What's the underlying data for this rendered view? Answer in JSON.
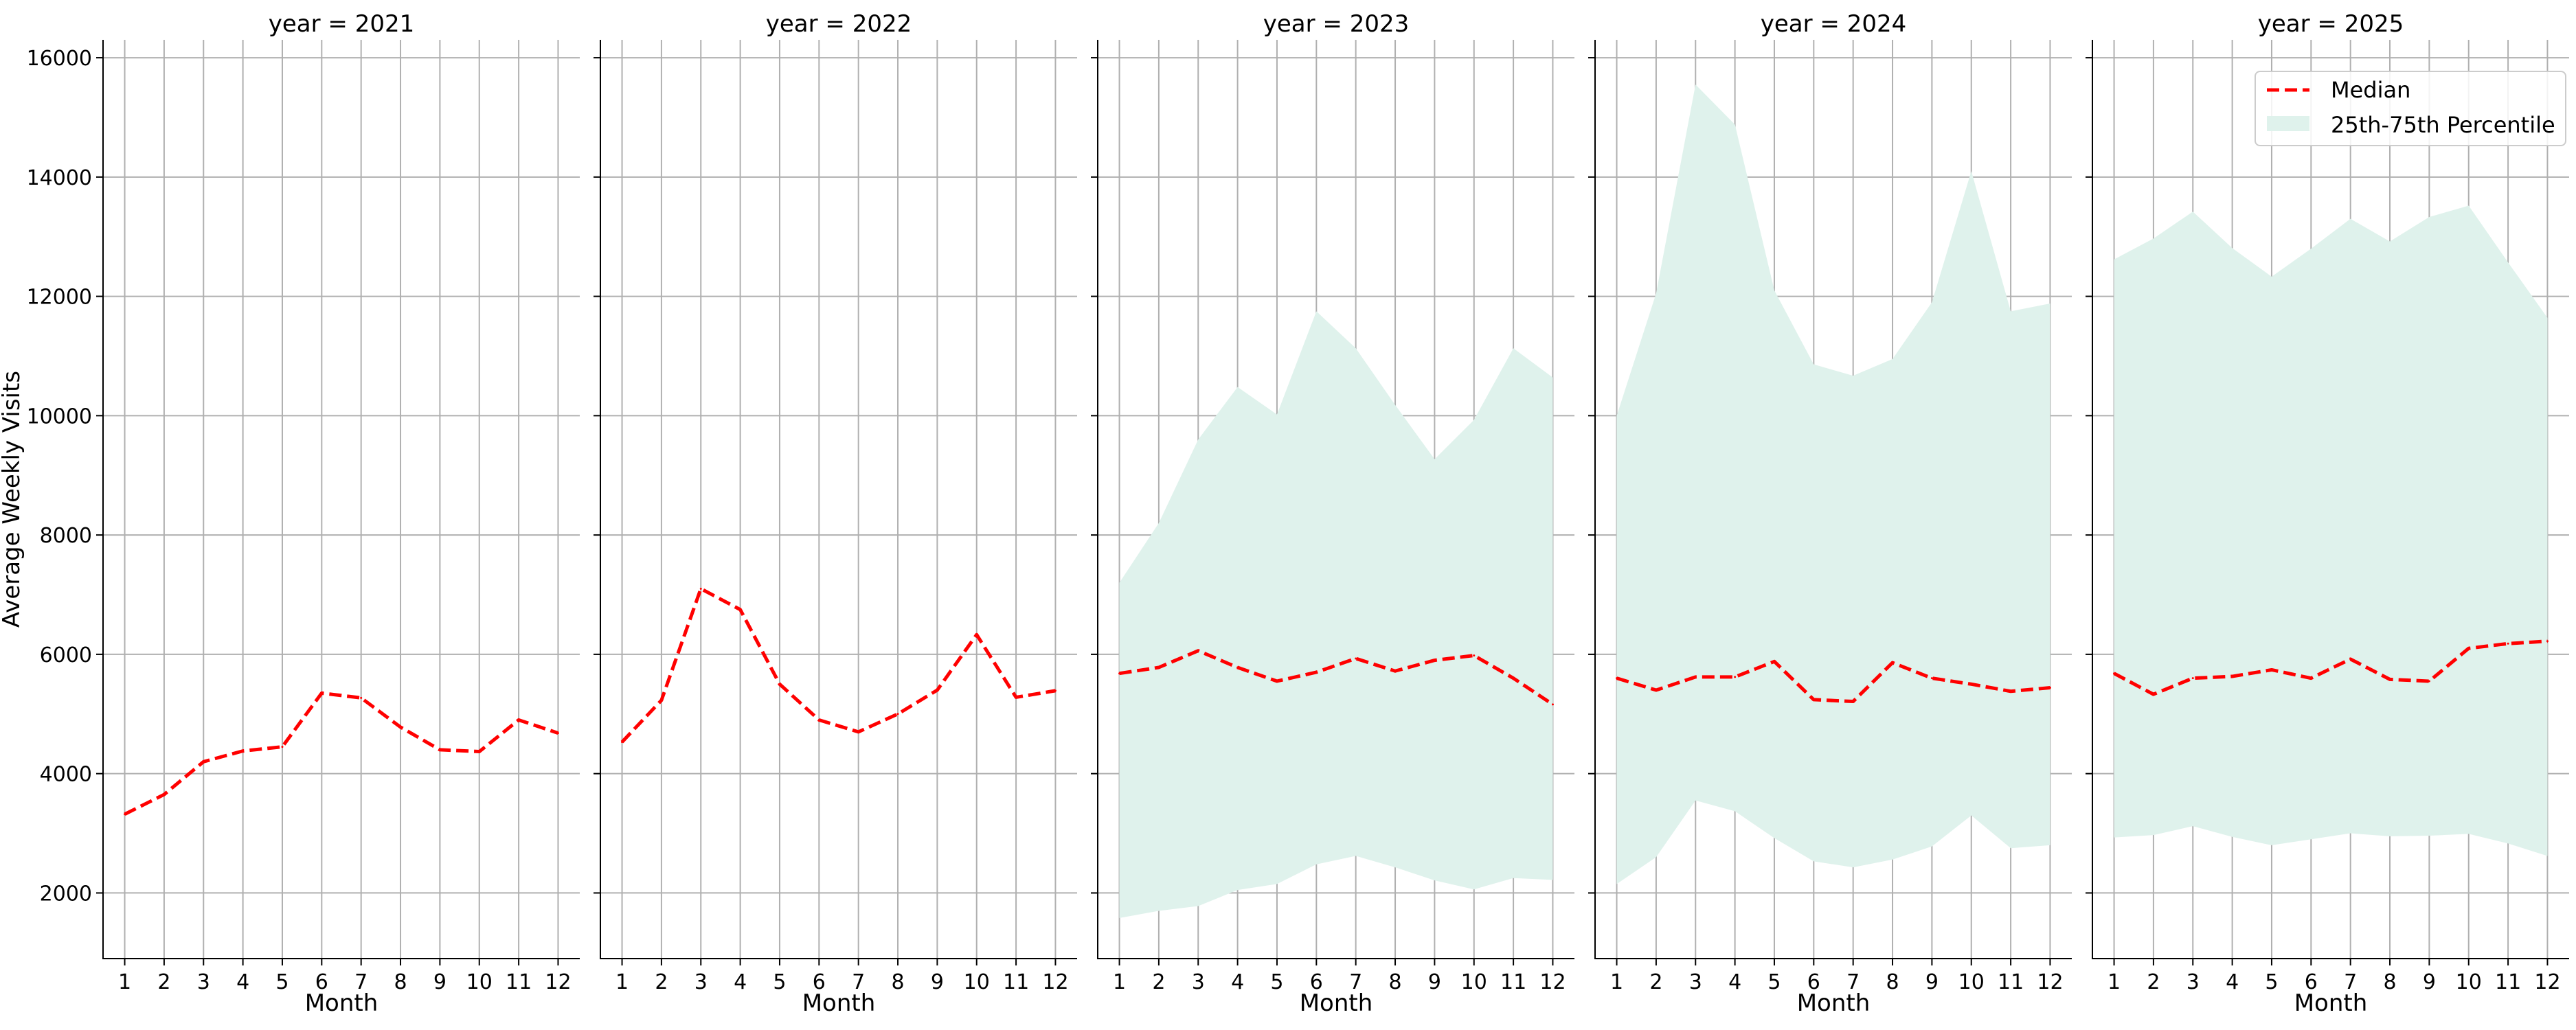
{
  "chart_data": {
    "type": "line",
    "layout": "small-multiples",
    "ylabel": "Average Weekly Visits",
    "xlabel": "Month",
    "ylim": [
      900,
      16300
    ],
    "xlim": [
      0.45,
      12.55
    ],
    "x_ticks": [
      1,
      2,
      3,
      4,
      5,
      6,
      7,
      8,
      9,
      10,
      11,
      12
    ],
    "y_ticks": [
      2000,
      4000,
      6000,
      8000,
      10000,
      12000,
      14000,
      16000
    ],
    "grid": true,
    "legend": {
      "placement": "top-right",
      "panel_index": 4,
      "entries": [
        "Median",
        "25th-75th Percentile"
      ]
    },
    "colors": {
      "median": "#ff0000",
      "band": "#dff2ec",
      "grid": "#b0b0b0",
      "axis": "#000000"
    },
    "panels": [
      {
        "title": "year = 2021",
        "median": [
          3320,
          3650,
          4200,
          4380,
          4450,
          5350,
          5270,
          4780,
          4400,
          4370,
          4900,
          4680
        ],
        "q25": null,
        "q75": null
      },
      {
        "title": "year = 2022",
        "median": [
          4530,
          5230,
          7100,
          6750,
          5500,
          4900,
          4700,
          5000,
          5400,
          6330,
          5280,
          5390
        ],
        "q25": null,
        "q75": null
      },
      {
        "title": "year = 2023",
        "median": [
          5680,
          5780,
          6060,
          5780,
          5550,
          5700,
          5930,
          5720,
          5900,
          5980,
          5600,
          5160
        ],
        "q25": [
          1580,
          1700,
          1780,
          2050,
          2150,
          2480,
          2620,
          2430,
          2210,
          2060,
          2250,
          2220
        ],
        "q75": [
          7200,
          8200,
          9600,
          10480,
          10020,
          11750,
          11130,
          10180,
          9270,
          9930,
          11130,
          10640
        ]
      },
      {
        "title": "year = 2024",
        "median": [
          5600,
          5400,
          5620,
          5620,
          5880,
          5240,
          5210,
          5860,
          5600,
          5500,
          5380,
          5440
        ],
        "q25": [
          2150,
          2600,
          3550,
          3370,
          2920,
          2530,
          2430,
          2560,
          2780,
          3300,
          2750,
          2800
        ],
        "q75": [
          10000,
          12050,
          15550,
          14880,
          12100,
          10860,
          10670,
          10950,
          11900,
          14100,
          11750,
          11880
        ]
      },
      {
        "title": "year = 2025",
        "median": [
          5680,
          5330,
          5600,
          5630,
          5740,
          5600,
          5920,
          5580,
          5550,
          6100,
          6180,
          6220
        ],
        "q25": [
          2930,
          2970,
          3120,
          2940,
          2800,
          2900,
          3000,
          2950,
          2960,
          2990,
          2830,
          2620
        ],
        "q75": [
          12620,
          12970,
          13420,
          12810,
          12330,
          12800,
          13300,
          12920,
          13330,
          13520,
          12570,
          11640
        ]
      }
    ]
  }
}
